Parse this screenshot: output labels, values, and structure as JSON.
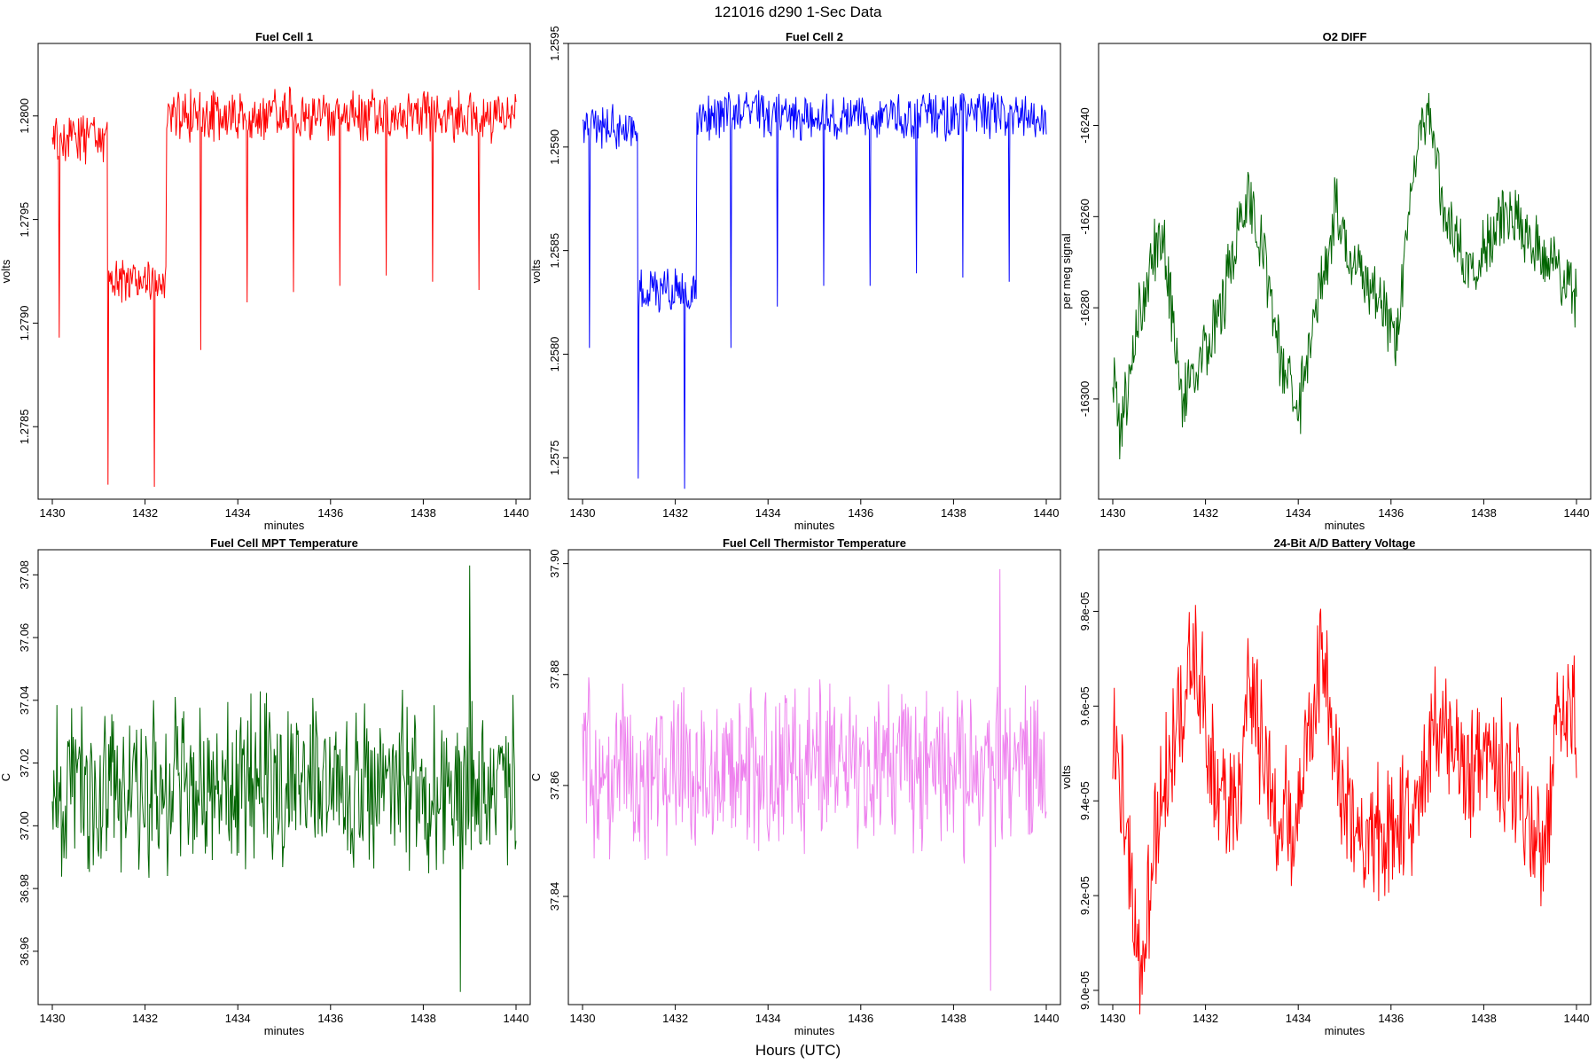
{
  "figure": {
    "title": "121016   d290   1-Sec Data",
    "footer": "Hours (UTC)"
  },
  "chart_data": [
    {
      "type": "line",
      "title": "Fuel Cell 1",
      "xlabel": "minutes",
      "ylabel": "volts",
      "color": "#ff0000",
      "xlim": [
        1430,
        1440
      ],
      "ylim": [
        1.27815,
        1.28035
      ],
      "xticks": [
        1430,
        1432,
        1434,
        1436,
        1438,
        1440
      ],
      "yticks": [
        1.2785,
        1.279,
        1.2795,
        1.28
      ],
      "ytick_labels": [
        "1.2785",
        "1.2790",
        "1.2795",
        "1.2800"
      ],
      "segments": [
        {
          "x0": 1430.0,
          "x1": 1431.2,
          "base": 1.2799,
          "noise": 0.00012
        },
        {
          "x0": 1431.2,
          "x1": 1432.45,
          "base": 1.2792,
          "noise": 0.0001
        },
        {
          "x0": 1432.45,
          "x1": 1440.0,
          "base": 1.28,
          "noise": 0.00012
        }
      ],
      "spikes": [
        {
          "x": 1430.15,
          "y": 1.27893
        },
        {
          "x": 1431.2,
          "y": 1.27822
        },
        {
          "x": 1432.2,
          "y": 1.27821
        },
        {
          "x": 1433.2,
          "y": 1.27887
        },
        {
          "x": 1434.2,
          "y": 1.2791
        },
        {
          "x": 1435.2,
          "y": 1.27915
        },
        {
          "x": 1436.2,
          "y": 1.27918
        },
        {
          "x": 1437.2,
          "y": 1.27923
        },
        {
          "x": 1438.2,
          "y": 1.2792
        },
        {
          "x": 1439.2,
          "y": 1.27916
        }
      ],
      "seed": 11
    },
    {
      "type": "line",
      "title": "Fuel Cell 2",
      "xlabel": "minutes",
      "ylabel": "volts",
      "color": "#0000ff",
      "xlim": [
        1430,
        1440
      ],
      "ylim": [
        1.2573,
        1.2595
      ],
      "xticks": [
        1430,
        1432,
        1434,
        1436,
        1438,
        1440
      ],
      "yticks": [
        1.2575,
        1.258,
        1.2585,
        1.259,
        1.2595
      ],
      "ytick_labels": [
        "1.2575",
        "1.2580",
        "1.2585",
        "1.2590",
        "1.2595"
      ],
      "segments": [
        {
          "x0": 1430.0,
          "x1": 1431.2,
          "base": 1.2591,
          "noise": 0.0001
        },
        {
          "x0": 1431.2,
          "x1": 1432.45,
          "base": 1.2583,
          "noise": 0.0001
        },
        {
          "x0": 1432.45,
          "x1": 1440.0,
          "base": 1.25915,
          "noise": 0.00011
        }
      ],
      "spikes": [
        {
          "x": 1430.15,
          "y": 1.25803
        },
        {
          "x": 1431.2,
          "y": 1.2574
        },
        {
          "x": 1432.2,
          "y": 1.25735
        },
        {
          "x": 1433.2,
          "y": 1.25803
        },
        {
          "x": 1434.2,
          "y": 1.25823
        },
        {
          "x": 1435.2,
          "y": 1.25833
        },
        {
          "x": 1436.2,
          "y": 1.25833
        },
        {
          "x": 1437.2,
          "y": 1.25839
        },
        {
          "x": 1438.2,
          "y": 1.25837
        },
        {
          "x": 1439.2,
          "y": 1.25835
        }
      ],
      "seed": 23
    },
    {
      "type": "line",
      "title": "O2 DIFF",
      "xlabel": "minutes",
      "ylabel": "per meg signal",
      "color": "#006400",
      "xlim": [
        1430,
        1440
      ],
      "ylim": [
        -16322,
        -16222
      ],
      "xticks": [
        1430,
        1432,
        1434,
        1436,
        1438,
        1440
      ],
      "yticks": [
        -16300,
        -16280,
        -16260,
        -16240
      ],
      "ytick_labels": [
        "-16300",
        "-16280",
        "-16260",
        "-16240"
      ],
      "waves": [
        {
          "x": 1430.0,
          "y": -16290
        },
        {
          "x": 1430.15,
          "y": -16310
        },
        {
          "x": 1430.5,
          "y": -16285
        },
        {
          "x": 1430.9,
          "y": -16268
        },
        {
          "x": 1431.1,
          "y": -16265
        },
        {
          "x": 1431.5,
          "y": -16300
        },
        {
          "x": 1432.0,
          "y": -16290
        },
        {
          "x": 1432.3,
          "y": -16282
        },
        {
          "x": 1432.9,
          "y": -16255
        },
        {
          "x": 1433.2,
          "y": -16265
        },
        {
          "x": 1433.6,
          "y": -16290
        },
        {
          "x": 1434.0,
          "y": -16302
        },
        {
          "x": 1434.4,
          "y": -16280
        },
        {
          "x": 1434.8,
          "y": -16258
        },
        {
          "x": 1435.2,
          "y": -16272
        },
        {
          "x": 1435.8,
          "y": -16278
        },
        {
          "x": 1436.1,
          "y": -16288
        },
        {
          "x": 1436.5,
          "y": -16250
        },
        {
          "x": 1436.8,
          "y": -16236
        },
        {
          "x": 1437.2,
          "y": -16262
        },
        {
          "x": 1437.8,
          "y": -16272
        },
        {
          "x": 1438.3,
          "y": -16262
        },
        {
          "x": 1438.8,
          "y": -16262
        },
        {
          "x": 1439.3,
          "y": -16268
        },
        {
          "x": 1440.0,
          "y": -16278
        }
      ],
      "noise": 6,
      "seed": 37
    },
    {
      "type": "line",
      "title": "Fuel Cell MPT Temperature",
      "xlabel": "minutes",
      "ylabel": "C",
      "color": "#006400",
      "xlim": [
        1430,
        1440
      ],
      "ylim": [
        36.943,
        37.088
      ],
      "xticks": [
        1430,
        1432,
        1434,
        1436,
        1438,
        1440
      ],
      "yticks": [
        36.96,
        36.98,
        37.0,
        37.02,
        37.04,
        37.06,
        37.08
      ],
      "ytick_labels": [
        "36.96",
        "36.98",
        "37.00",
        "37.02",
        "37.04",
        "37.06",
        "37.08"
      ],
      "center": 37.012,
      "noise": 0.022,
      "range": [
        36.947,
        37.083
      ],
      "seed": 53
    },
    {
      "type": "line",
      "title": "Fuel Cell Thermistor Temperature",
      "xlabel": "minutes",
      "ylabel": "C",
      "color": "#ee82ee",
      "xlim": [
        1430,
        1440
      ],
      "ylim": [
        37.8205,
        37.9025
      ],
      "xticks": [
        1430,
        1432,
        1434,
        1436,
        1438,
        1440
      ],
      "yticks": [
        37.84,
        37.86,
        37.88,
        37.9
      ],
      "ytick_labels": [
        "37.84",
        "37.86",
        "37.88",
        "37.90"
      ],
      "center": 37.863,
      "noise": 0.012,
      "range": [
        37.823,
        37.899
      ],
      "seed": 71
    },
    {
      "type": "line",
      "title": "24-Bit A/D Battery Voltage",
      "xlabel": "minutes",
      "ylabel": "volts",
      "color": "#ff0000",
      "xlim": [
        1430,
        1440
      ],
      "ylim": [
        8.97e-05,
        9.93e-05
      ],
      "xticks": [
        1430,
        1432,
        1434,
        1436,
        1438,
        1440
      ],
      "yticks": [
        9e-05,
        9.2e-05,
        9.4e-05,
        9.6e-05,
        9.8e-05
      ],
      "ytick_labels": [
        "9.0e-05",
        "9.2e-05",
        "9.4e-05",
        "9.6e-05",
        "9.8e-05"
      ],
      "waves": [
        {
          "x": 1430.0,
          "y": 9.55e-05
        },
        {
          "x": 1430.3,
          "y": 9.35e-05
        },
        {
          "x": 1430.6,
          "y": 9.05e-05
        },
        {
          "x": 1430.9,
          "y": 9.3e-05
        },
        {
          "x": 1431.4,
          "y": 9.6e-05
        },
        {
          "x": 1431.8,
          "y": 9.7e-05
        },
        {
          "x": 1432.2,
          "y": 9.45e-05
        },
        {
          "x": 1432.6,
          "y": 9.35e-05
        },
        {
          "x": 1433.0,
          "y": 9.65e-05
        },
        {
          "x": 1433.4,
          "y": 9.4e-05
        },
        {
          "x": 1433.9,
          "y": 9.35e-05
        },
        {
          "x": 1434.5,
          "y": 9.7e-05
        },
        {
          "x": 1435.0,
          "y": 9.4e-05
        },
        {
          "x": 1435.5,
          "y": 9.3e-05
        },
        {
          "x": 1436.0,
          "y": 9.35e-05
        },
        {
          "x": 1436.5,
          "y": 9.35e-05
        },
        {
          "x": 1437.1,
          "y": 9.6e-05
        },
        {
          "x": 1437.6,
          "y": 9.45e-05
        },
        {
          "x": 1438.2,
          "y": 9.5e-05
        },
        {
          "x": 1438.8,
          "y": 9.4e-05
        },
        {
          "x": 1439.3,
          "y": 9.3e-05
        },
        {
          "x": 1439.6,
          "y": 9.6e-05
        },
        {
          "x": 1440.0,
          "y": 9.58e-05
        }
      ],
      "noise": 1.1e-06,
      "seed": 89
    }
  ]
}
